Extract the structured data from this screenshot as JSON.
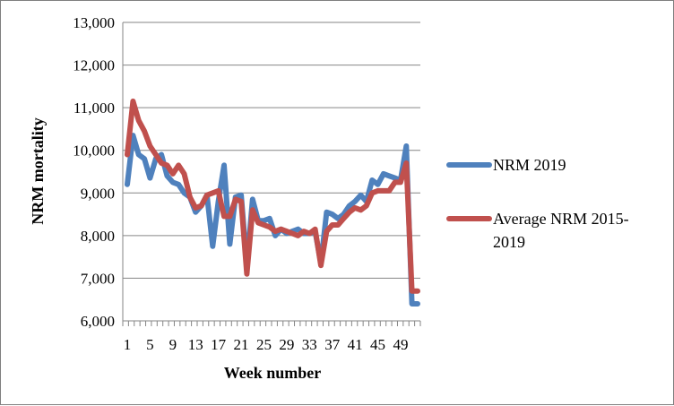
{
  "chart_data": {
    "type": "line",
    "xlabel": "Week number",
    "ylabel": "NRM mortality",
    "ylim": [
      6000,
      13000
    ],
    "y_ticks": [
      "6,000",
      "7,000",
      "8,000",
      "9,000",
      "10,000",
      "11,000",
      "12,000",
      "13,000"
    ],
    "x_tick_labels": [
      "1",
      "5",
      "9",
      "13",
      "17",
      "21",
      "25",
      "29",
      "33",
      "37",
      "41",
      "45",
      "49"
    ],
    "x": [
      1,
      2,
      3,
      4,
      5,
      6,
      7,
      8,
      9,
      10,
      11,
      12,
      13,
      14,
      15,
      16,
      17,
      18,
      19,
      20,
      21,
      22,
      23,
      24,
      25,
      26,
      27,
      28,
      29,
      30,
      31,
      32,
      33,
      34,
      35,
      36,
      37,
      38,
      39,
      40,
      41,
      42,
      43,
      44,
      45,
      46,
      47,
      48,
      49,
      50,
      51,
      52
    ],
    "grid": "horizontal",
    "legend_position": "right",
    "series": [
      {
        "name": "NRM 2019",
        "color": "#4f81bd",
        "values": [
          9200,
          10350,
          9900,
          9800,
          9350,
          9800,
          9900,
          9400,
          9250,
          9200,
          9000,
          8900,
          8550,
          8700,
          8950,
          7750,
          8800,
          9650,
          7800,
          8900,
          8950,
          7300,
          8850,
          8350,
          8350,
          8400,
          8000,
          8150,
          8050,
          8100,
          8150,
          8050,
          8050,
          8100,
          7350,
          8550,
          8500,
          8400,
          8500,
          8700,
          8800,
          8950,
          8800,
          9300,
          9200,
          9450,
          9400,
          9350,
          9300,
          10100,
          6400,
          6400
        ]
      },
      {
        "name": "Average NRM 2015-2019",
        "color": "#c0504d",
        "values": [
          9900,
          11150,
          10700,
          10450,
          10100,
          9900,
          9700,
          9650,
          9450,
          9650,
          9450,
          8900,
          8650,
          8700,
          8950,
          9000,
          9050,
          8450,
          8450,
          8850,
          8800,
          7100,
          8600,
          8300,
          8250,
          8200,
          8100,
          8150,
          8100,
          8050,
          8000,
          8100,
          8050,
          8150,
          7300,
          8100,
          8250,
          8250,
          8400,
          8550,
          8650,
          8600,
          8700,
          9000,
          9050,
          9050,
          9050,
          9250,
          9250,
          9700,
          6700,
          6700
        ]
      }
    ]
  }
}
